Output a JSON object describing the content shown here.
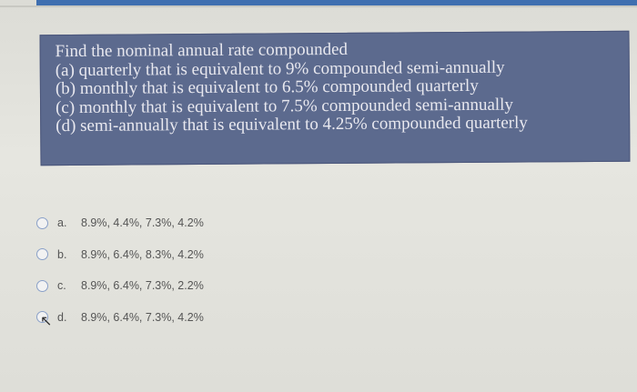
{
  "question": {
    "lines": [
      "Find the nominal annual rate compounded",
      "(a) quarterly that is equivalent to 9% compounded semi-annually",
      "(b) monthly that is equivalent to 6.5% compounded quarterly",
      "(c) monthly that is equivalent to 7.5% compounded semi-annually",
      "(d) semi-annually that is equivalent to 4.25% compounded quarterly"
    ]
  },
  "options": [
    {
      "letter": "a.",
      "text": "8.9%, 4.4%, 7.3%, 4.2%"
    },
    {
      "letter": "b.",
      "text": "8.9%, 6.4%, 8.3%, 4.2%"
    },
    {
      "letter": "c.",
      "text": "8.9%, 6.4%, 7.3%, 2.2%"
    },
    {
      "letter": "d.",
      "text": "8.9%, 6.4%, 7.3%, 4.2%"
    }
  ]
}
